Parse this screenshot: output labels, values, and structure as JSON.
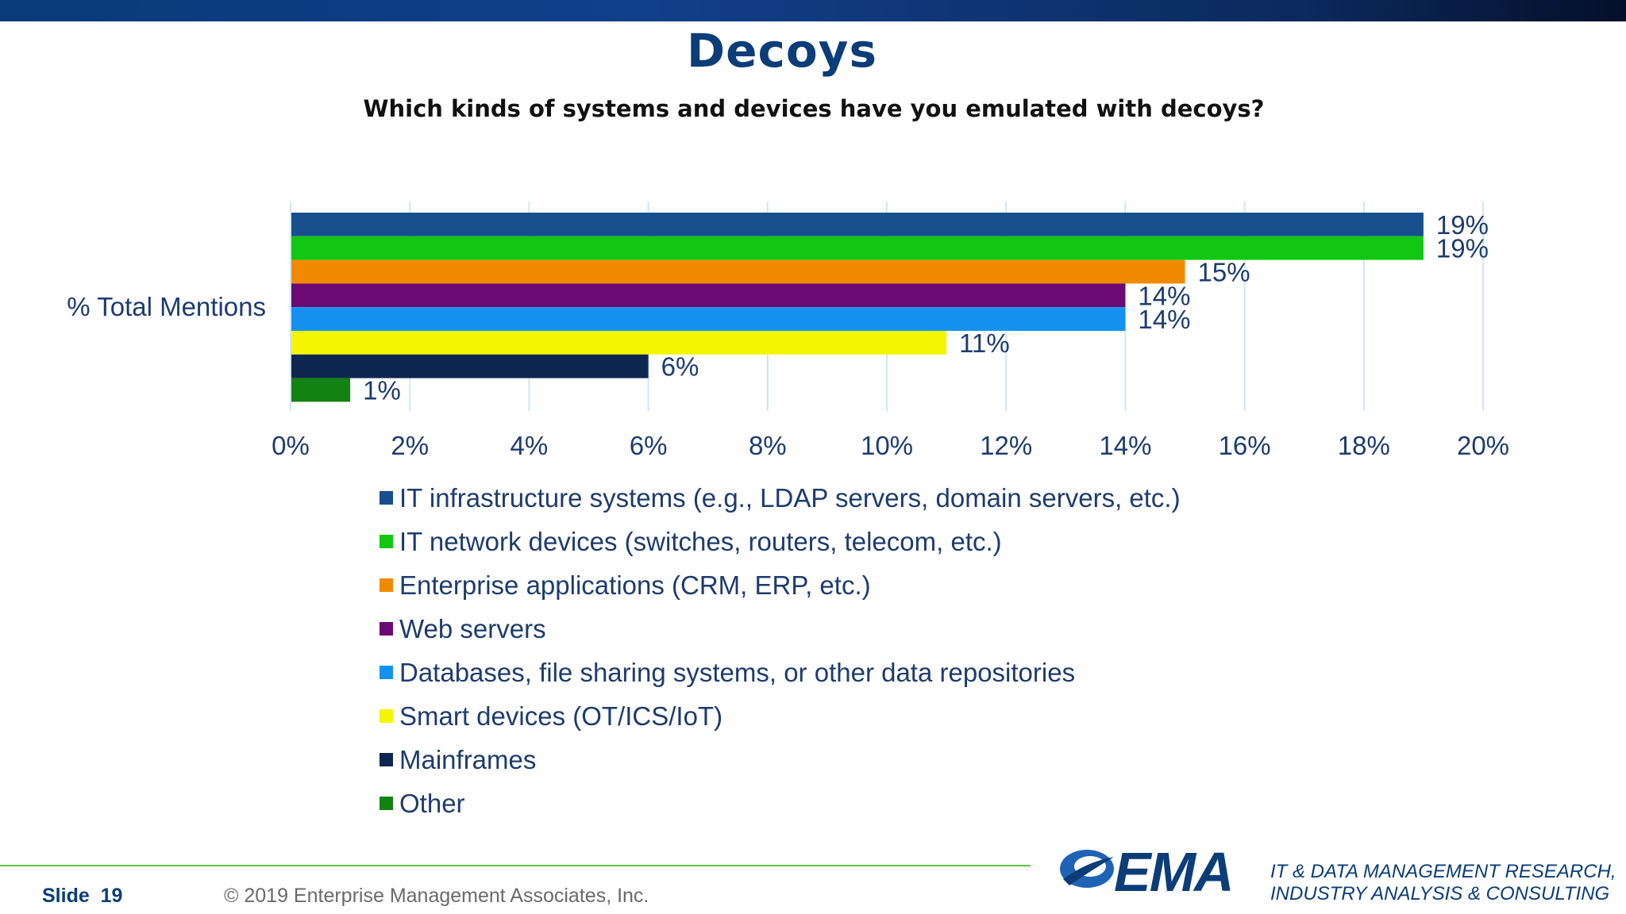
{
  "header": {
    "title": "Decoys",
    "subtitle": "Which kinds of systems and devices have you emulated with decoys?"
  },
  "chart_data": {
    "type": "bar",
    "orientation": "horizontal",
    "categories": [
      "% Total Mentions"
    ],
    "series": [
      {
        "name": "IT infrastructure systems (e.g., LDAP servers, domain servers, etc.)",
        "values": [
          19
        ],
        "label": "19%",
        "color": "#174f8f"
      },
      {
        "name": "IT network devices (switches, routers, telecom, etc.)",
        "values": [
          19
        ],
        "label": "19%",
        "color": "#12c712"
      },
      {
        "name": "Enterprise applications (CRM, ERP, etc.)",
        "values": [
          15
        ],
        "label": "15%",
        "color": "#f28a00"
      },
      {
        "name": "Web servers",
        "values": [
          14
        ],
        "label": "14%",
        "color": "#6b0a72"
      },
      {
        "name": "Databases, file sharing systems, or other data repositories",
        "values": [
          14
        ],
        "label": "14%",
        "color": "#1592f0"
      },
      {
        "name": "Smart devices (OT/ICS/IoT)",
        "values": [
          11
        ],
        "label": "11%",
        "color": "#f5f500"
      },
      {
        "name": "Mainframes",
        "values": [
          6
        ],
        "label": "6%",
        "color": "#0e2750"
      },
      {
        "name": "Other",
        "values": [
          1
        ],
        "label": "1%",
        "color": "#128212"
      }
    ],
    "xlim": [
      0,
      20
    ],
    "xticks": [
      0,
      2,
      4,
      6,
      8,
      10,
      12,
      14,
      16,
      18,
      20
    ],
    "xtick_labels": [
      "0%",
      "2%",
      "4%",
      "6%",
      "8%",
      "10%",
      "12%",
      "14%",
      "16%",
      "18%",
      "20%"
    ],
    "grid": true,
    "legend_position": "bottom"
  },
  "footer": {
    "slide_label": "Slide",
    "slide_number": "19",
    "copyright": "© 2019 Enterprise Management Associates, Inc.",
    "logo_text": "EMA",
    "tagline_line1": "IT & DATA MANAGEMENT RESEARCH,",
    "tagline_line2": "INDUSTRY ANALYSIS & CONSULTING"
  }
}
